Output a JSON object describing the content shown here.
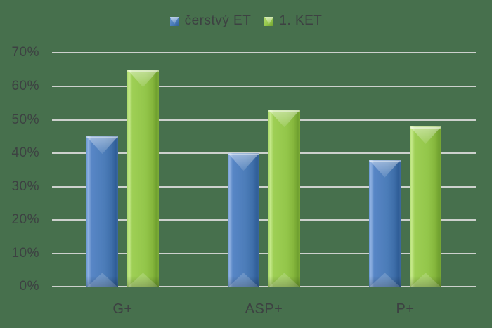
{
  "colors": {
    "background": "#47704d",
    "gridline": "#d9d9d8",
    "label_text": "#3d4142",
    "series_blue": "#4b7cb8",
    "series_green": "#93c64a"
  },
  "legend": {
    "items": [
      {
        "label": "čerstvý ET",
        "marker": "beveled-square-blue"
      },
      {
        "label": "1. KET",
        "marker": "beveled-square-green"
      }
    ]
  },
  "y_axis": {
    "tick_labels": [
      "0%",
      "10%",
      "20%",
      "30%",
      "40%",
      "50%",
      "60%",
      "70%"
    ]
  },
  "x_axis": {
    "categories": [
      "G+",
      "ASP+",
      "P+"
    ]
  },
  "chart_data": {
    "type": "bar",
    "title": "",
    "xlabel": "",
    "ylabel": "",
    "categories": [
      "G+",
      "ASP+",
      "P+"
    ],
    "series": [
      {
        "name": "čerstvý ET",
        "color": "#4b7cb8",
        "values": [
          45,
          40,
          38
        ]
      },
      {
        "name": "1. KET",
        "color": "#93c64a",
        "values": [
          65,
          53,
          48
        ]
      }
    ],
    "ylim": [
      0,
      70
    ],
    "ytick_step": 10,
    "ytick_suffix": "%",
    "grid": true,
    "legend_position": "top-center",
    "bar_style": "3d-bevel-pyramid-top"
  }
}
